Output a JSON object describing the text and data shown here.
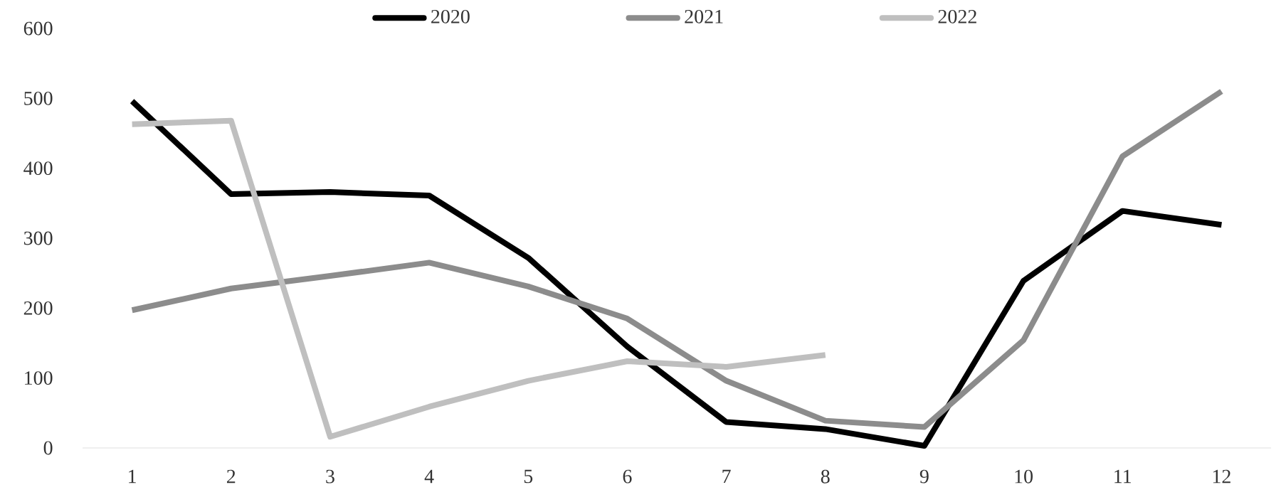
{
  "chart_data": {
    "type": "line",
    "categories": [
      "1",
      "2",
      "3",
      "4",
      "5",
      "6",
      "7",
      "8",
      "9",
      "10",
      "11",
      "12"
    ],
    "series": [
      {
        "name": "2020",
        "color": "#000000",
        "values": [
          496,
          363,
          366,
          361,
          272,
          145,
          37,
          27,
          3,
          239,
          339,
          319
        ]
      },
      {
        "name": "2021",
        "color": "#8c8c8c",
        "values": [
          197,
          228,
          246,
          265,
          231,
          185,
          96,
          39,
          30,
          154,
          417,
          510
        ]
      },
      {
        "name": "2022",
        "color": "#bfbfbf",
        "values": [
          463,
          468,
          16,
          59,
          96,
          124,
          116,
          133,
          null,
          null,
          null,
          null
        ]
      }
    ],
    "ylim": [
      0,
      600
    ],
    "yticks": [
      0,
      100,
      200,
      300,
      400,
      500,
      600
    ],
    "grid": false,
    "legend": "top",
    "marker": "none",
    "line_style": "solid"
  }
}
